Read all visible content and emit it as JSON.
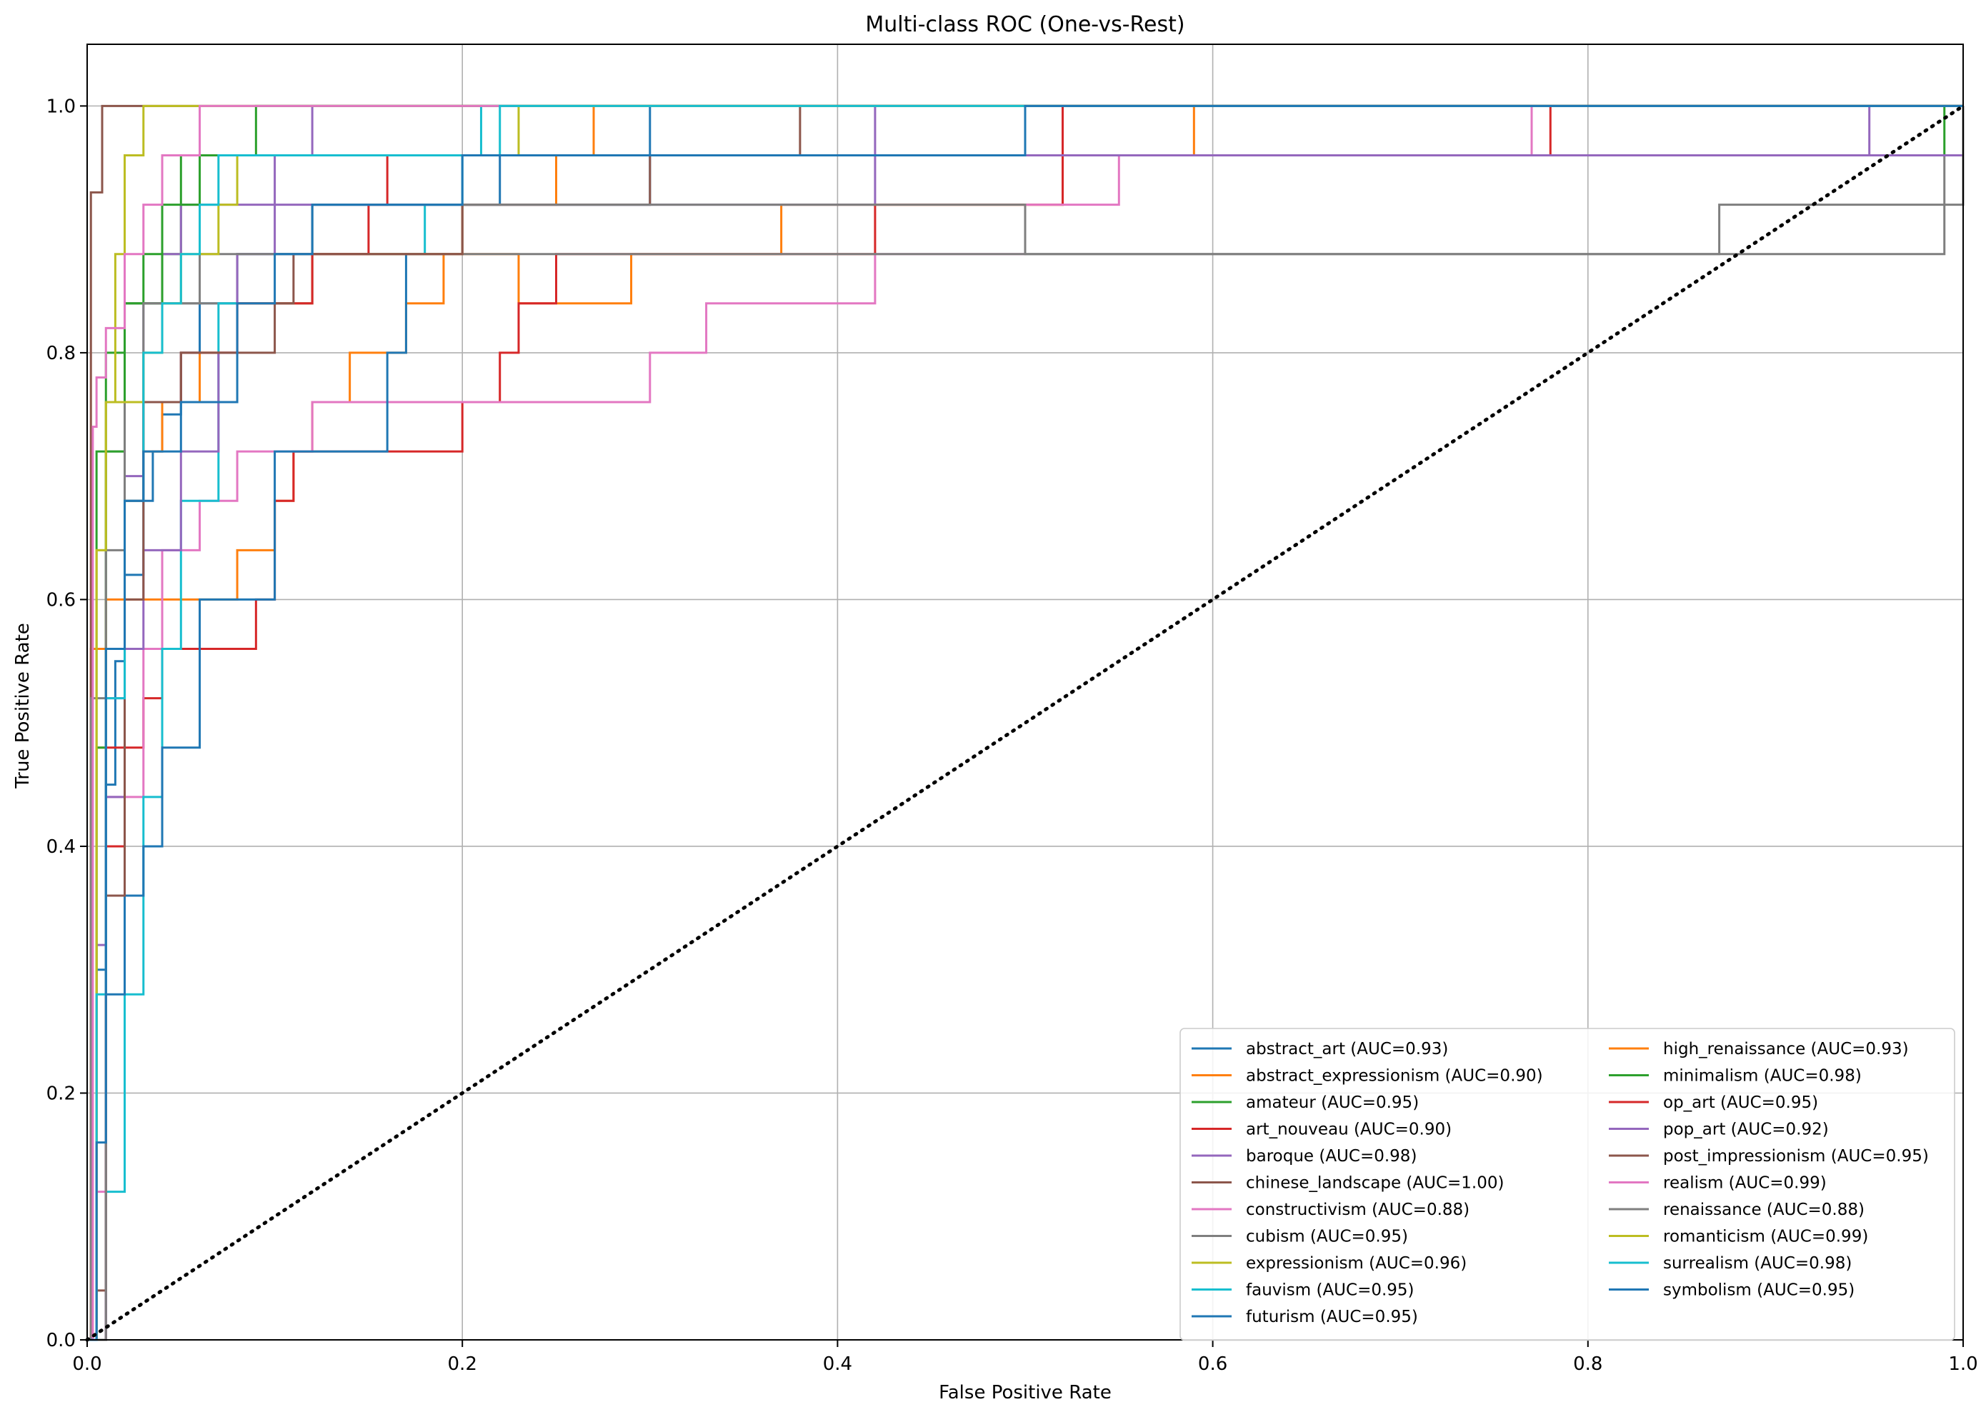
{
  "chart_data": {
    "type": "line",
    "title": "Multi-class ROC (One-vs-Rest)",
    "xlabel": "False Positive Rate",
    "ylabel": "True Positive Rate",
    "xlim": [
      0,
      1
    ],
    "ylim": [
      0,
      1.05
    ],
    "xticks": [
      "0.0",
      "0.2",
      "0.4",
      "0.6",
      "0.8",
      "1.0"
    ],
    "yticks": [
      "0.0",
      "0.2",
      "0.4",
      "0.6",
      "0.8",
      "1.0"
    ],
    "grid": true,
    "legend_position": "lower-right",
    "legend_columns": 2,
    "chance_line": {
      "x": [
        0,
        1
      ],
      "y": [
        0,
        1
      ],
      "style": "dotted",
      "color": "#000000"
    },
    "series": [
      {
        "name": "abstract_art (AUC=0.93)",
        "color": "#1f77b4",
        "x": [
          0,
          0.005,
          0.01,
          0.015,
          0.02,
          0.03,
          0.035,
          0.04,
          0.05,
          0.06,
          0.08,
          0.1,
          0.12,
          0.15,
          0.2,
          0.3,
          0.3,
          0.5,
          0.52,
          1.0
        ],
        "y": [
          0,
          0.3,
          0.45,
          0.55,
          0.62,
          0.68,
          0.72,
          0.75,
          0.8,
          0.84,
          0.88,
          0.88,
          0.92,
          0.92,
          0.92,
          0.92,
          1.0,
          1.0,
          1.0,
          1.0
        ]
      },
      {
        "name": "abstract_expressionism (AUC=0.90)",
        "color": "#ff7f0e",
        "x": [
          0,
          0.002,
          0.01,
          0.02,
          0.04,
          0.08,
          0.1,
          0.11,
          0.12,
          0.14,
          0.17,
          0.19,
          0.23,
          0.29,
          0.3,
          0.37,
          0.52,
          0.59,
          1.0
        ],
        "y": [
          0,
          0.56,
          0.56,
          0.6,
          0.6,
          0.64,
          0.68,
          0.72,
          0.76,
          0.8,
          0.84,
          0.88,
          0.84,
          0.88,
          0.88,
          0.92,
          0.96,
          1.0,
          1.0
        ]
      },
      {
        "name": "amateur (AUC=0.95)",
        "color": "#2ca02c",
        "x": [
          0,
          0.005,
          0.01,
          0.02,
          0.03,
          0.05,
          0.07,
          0.1,
          0.2,
          0.5,
          0.98,
          0.99,
          1.0
        ],
        "y": [
          0,
          0.72,
          0.8,
          0.84,
          0.88,
          0.96,
          0.96,
          0.96,
          0.96,
          0.96,
          0.96,
          1.0,
          1.0
        ]
      },
      {
        "name": "art_nouveau (AUC=0.90)",
        "color": "#d62728",
        "x": [
          0,
          0.01,
          0.02,
          0.03,
          0.04,
          0.05,
          0.09,
          0.1,
          0.11,
          0.2,
          0.22,
          0.23,
          0.25,
          0.3,
          0.42,
          0.52,
          0.78,
          1.0
        ],
        "y": [
          0,
          0.4,
          0.48,
          0.52,
          0.56,
          0.56,
          0.6,
          0.68,
          0.72,
          0.76,
          0.8,
          0.84,
          0.88,
          0.88,
          0.92,
          0.96,
          1.0,
          1.0
        ]
      },
      {
        "name": "baroque (AUC=0.98)",
        "color": "#9467bd",
        "x": [
          0,
          0.005,
          0.01,
          0.02,
          0.03,
          0.04,
          0.05,
          0.1,
          0.12,
          0.4,
          0.42,
          0.95,
          1.0
        ],
        "y": [
          0,
          0.32,
          0.52,
          0.7,
          0.84,
          0.88,
          0.92,
          0.96,
          1.0,
          1.0,
          0.96,
          1.0,
          1.0
        ]
      },
      {
        "name": "chinese_landscape (AUC=1.00)",
        "color": "#8c564b",
        "x": [
          0,
          0.002,
          0.005,
          0.008,
          0.025,
          1.0
        ],
        "y": [
          0,
          0.93,
          0.93,
          1.0,
          1.0,
          1.0
        ]
      },
      {
        "name": "constructivism (AUC=0.88)",
        "color": "#e377c2",
        "x": [
          0,
          0.005,
          0.01,
          0.03,
          0.04,
          0.06,
          0.08,
          0.12,
          0.2,
          0.3,
          0.33,
          0.37,
          0.42,
          0.5,
          0.55,
          0.77,
          1.0
        ],
        "y": [
          0,
          0.12,
          0.44,
          0.56,
          0.64,
          0.68,
          0.72,
          0.76,
          0.76,
          0.8,
          0.84,
          0.84,
          0.88,
          0.92,
          0.96,
          1.0,
          1.0
        ]
      },
      {
        "name": "cubism (AUC=0.95)",
        "color": "#7f7f7f",
        "x": [
          0,
          0.002,
          0.01,
          0.02,
          0.05,
          0.08,
          0.12,
          0.5,
          0.86,
          0.87,
          0.99,
          1.0
        ],
        "y": [
          0,
          0.52,
          0.72,
          0.84,
          0.84,
          0.88,
          0.88,
          0.88,
          0.88,
          0.92,
          0.96,
          1.0
        ]
      },
      {
        "name": "expressionism (AUC=0.96)",
        "color": "#bcbd22",
        "x": [
          0,
          0.005,
          0.01,
          0.015,
          0.02,
          0.03,
          0.15,
          0.26,
          1.0
        ],
        "y": [
          0,
          0.64,
          0.76,
          0.88,
          0.96,
          1.0,
          1.0,
          1.0,
          1.0
        ]
      },
      {
        "name": "fauvism (AUC=0.95)",
        "color": "#17becf",
        "x": [
          0,
          0.01,
          0.02,
          0.03,
          0.04,
          0.05,
          0.07,
          0.12,
          0.18,
          0.2,
          0.21,
          0.22,
          0.3,
          1.0
        ],
        "y": [
          0,
          0.12,
          0.28,
          0.44,
          0.56,
          0.68,
          0.84,
          0.88,
          0.92,
          0.96,
          1.0,
          1.0,
          1.0,
          1.0
        ]
      },
      {
        "name": "futurism (AUC=0.95)",
        "color": "#1f77b4",
        "x": [
          0,
          0.01,
          0.02,
          0.03,
          0.04,
          0.06,
          0.1,
          0.16,
          0.17,
          0.2,
          0.22,
          0.5,
          1.0
        ],
        "y": [
          0,
          0.28,
          0.36,
          0.4,
          0.48,
          0.6,
          0.72,
          0.8,
          0.88,
          0.92,
          0.96,
          0.96,
          1.0
        ]
      },
      {
        "name": "high_renaissance (AUC=0.93)",
        "color": "#ff7f0e",
        "x": [
          0,
          0.005,
          0.01,
          0.02,
          0.03,
          0.04,
          0.06,
          0.08,
          0.12,
          0.15,
          0.2,
          0.25,
          0.27,
          0.5,
          1.0
        ],
        "y": [
          0,
          0.48,
          0.6,
          0.68,
          0.72,
          0.76,
          0.8,
          0.84,
          0.88,
          0.88,
          0.92,
          0.96,
          1.0,
          1.0,
          1.0
        ]
      },
      {
        "name": "minimalism (AUC=0.98)",
        "color": "#2ca02c",
        "x": [
          0,
          0.005,
          0.01,
          0.02,
          0.04,
          0.06,
          0.08,
          0.09,
          0.1,
          1.0
        ],
        "y": [
          0,
          0.48,
          0.72,
          0.84,
          0.92,
          0.96,
          0.96,
          1.0,
          1.0,
          1.0
        ]
      },
      {
        "name": "op_art (AUC=0.95)",
        "color": "#d62728",
        "x": [
          0,
          0.01,
          0.02,
          0.03,
          0.05,
          0.08,
          0.12,
          0.15,
          0.16,
          0.2,
          0.3,
          0.42,
          0.52,
          0.77,
          1.0
        ],
        "y": [
          0,
          0.48,
          0.68,
          0.76,
          0.8,
          0.84,
          0.88,
          0.92,
          0.96,
          0.96,
          0.96,
          0.96,
          1.0,
          1.0,
          1.0
        ]
      },
      {
        "name": "pop_art (AUC=0.92)",
        "color": "#9467bd",
        "x": [
          0,
          0.01,
          0.02,
          0.03,
          0.05,
          0.07,
          0.08,
          0.1,
          0.2,
          0.3,
          0.41,
          0.42,
          0.6,
          0.95,
          1.0
        ],
        "y": [
          0,
          0.44,
          0.56,
          0.64,
          0.72,
          0.8,
          0.88,
          0.92,
          0.92,
          0.92,
          0.92,
          0.96,
          0.96,
          0.96,
          1.0
        ]
      },
      {
        "name": "post_impressionism (AUC=0.95)",
        "color": "#8c564b",
        "x": [
          0,
          0.005,
          0.01,
          0.02,
          0.03,
          0.05,
          0.1,
          0.11,
          0.2,
          0.3,
          0.38,
          1.0
        ],
        "y": [
          0,
          0.04,
          0.36,
          0.6,
          0.76,
          0.8,
          0.84,
          0.88,
          0.92,
          0.96,
          1.0,
          1.0
        ]
      },
      {
        "name": "realism (AUC=0.99)",
        "color": "#e377c2",
        "x": [
          0,
          0.003,
          0.005,
          0.01,
          0.02,
          0.03,
          0.04,
          0.05,
          0.06,
          1.0
        ],
        "y": [
          0,
          0.74,
          0.78,
          0.82,
          0.88,
          0.92,
          0.96,
          0.96,
          1.0,
          1.0
        ]
      },
      {
        "name": "renaissance (AUC=0.88)",
        "color": "#7f7f7f",
        "x": [
          0,
          0.01,
          0.02,
          0.03,
          0.06,
          0.1,
          0.12,
          0.3,
          0.5,
          0.86,
          0.99,
          1.0
        ],
        "y": [
          0,
          0.64,
          0.76,
          0.84,
          0.88,
          0.88,
          0.92,
          0.92,
          0.88,
          0.88,
          0.92,
          1.0
        ]
      },
      {
        "name": "romanticism (AUC=0.99)",
        "color": "#bcbd22",
        "x": [
          0,
          0.005,
          0.01,
          0.02,
          0.03,
          0.04,
          0.05,
          0.07,
          0.08,
          0.23,
          1.0
        ],
        "y": [
          0,
          0.64,
          0.76,
          0.76,
          0.8,
          0.84,
          0.88,
          0.92,
          0.96,
          1.0,
          1.0
        ]
      },
      {
        "name": "surrealism (AUC=0.98)",
        "color": "#17becf",
        "x": [
          0,
          0.005,
          0.01,
          0.02,
          0.03,
          0.04,
          0.05,
          0.06,
          0.07,
          0.22,
          1.0
        ],
        "y": [
          0,
          0.28,
          0.52,
          0.68,
          0.8,
          0.84,
          0.88,
          0.92,
          0.96,
          1.0,
          1.0
        ]
      },
      {
        "name": "symbolism (AUC=0.95)",
        "color": "#1f77b4",
        "x": [
          0,
          0.005,
          0.01,
          0.02,
          0.03,
          0.05,
          0.08,
          0.1,
          0.12,
          0.2,
          0.3,
          0.5,
          1.0
        ],
        "y": [
          0,
          0.16,
          0.56,
          0.68,
          0.72,
          0.76,
          0.84,
          0.88,
          0.92,
          0.96,
          0.96,
          1.0,
          1.0
        ]
      }
    ]
  }
}
